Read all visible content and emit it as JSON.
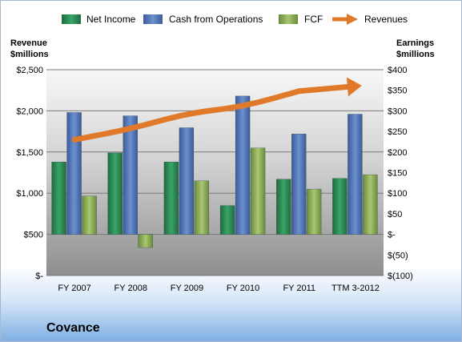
{
  "chart_data": {
    "type": "bar",
    "company": "Covance",
    "categories": [
      "FY 2007",
      "FY 2008",
      "FY 2009",
      "FY 2010",
      "FY 2011",
      "TTM 3-2012"
    ],
    "left_axis": {
      "label_line1": "Revenue",
      "label_line2": "$millions",
      "ylim": [
        0,
        2500
      ],
      "ticks": [
        0,
        500,
        1000,
        1500,
        2000,
        2500
      ],
      "tick_labels": [
        "$-",
        "$500",
        "$1,000",
        "$1,500",
        "$2,000",
        "$2,500"
      ]
    },
    "right_axis": {
      "label_line1": "Earnings",
      "label_line2": "$millions",
      "ylim": [
        -100,
        400
      ],
      "ticks": [
        -100,
        -50,
        0,
        50,
        100,
        150,
        200,
        250,
        300,
        350,
        400
      ],
      "tick_labels": [
        "$(100)",
        "$(50)",
        "$-",
        "$50",
        "$100",
        "$150",
        "$200",
        "$250",
        "$300",
        "$350",
        "$400"
      ]
    },
    "series": [
      {
        "name": "Net Income",
        "axis": "right",
        "kind": "bar",
        "color": "#2e8b57",
        "values": [
          176,
          198,
          176,
          70,
          134,
          136
        ]
      },
      {
        "name": "Cash from Operations",
        "axis": "right",
        "kind": "bar",
        "color": "#4f74b4",
        "values": [
          296,
          288,
          259,
          336,
          244,
          292
        ]
      },
      {
        "name": "FCF",
        "axis": "right",
        "kind": "bar",
        "color": "#8fb05a",
        "values": [
          93,
          -32,
          130,
          210,
          110,
          145
        ]
      },
      {
        "name": "Revenues",
        "axis": "left",
        "kind": "arrow-line",
        "color": "#e07a2a",
        "values": [
          1650,
          1780,
          1970,
          2050,
          2240,
          2300
        ]
      }
    ],
    "grid": true,
    "legend": "top"
  }
}
